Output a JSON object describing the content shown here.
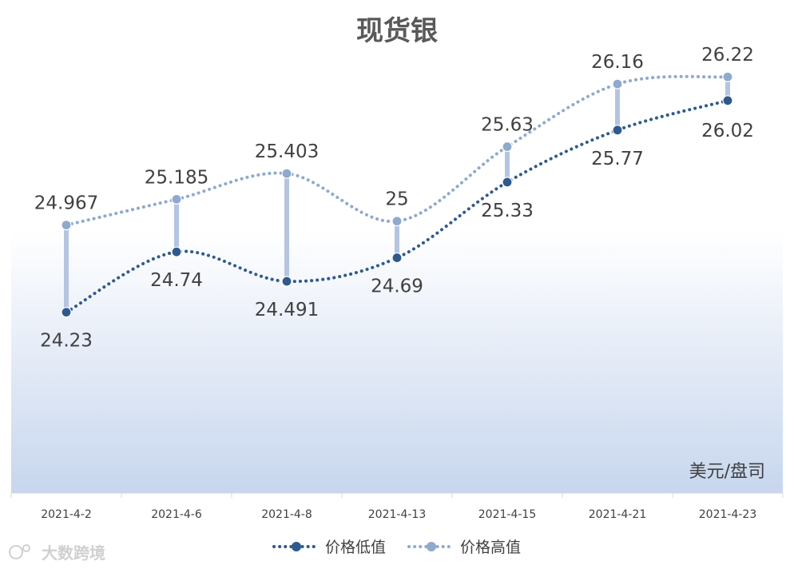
{
  "chart_data": {
    "type": "line",
    "title": "现货银",
    "unit_label": "美元/盘司",
    "categories": [
      "2021-4-2",
      "2021-4-6",
      "2021-4-8",
      "2021-4-13",
      "2021-4-15",
      "2021-4-21",
      "2021-4-23"
    ],
    "series": [
      {
        "name": "价格低值",
        "values": [
          24.23,
          24.74,
          24.491,
          24.69,
          25.33,
          25.77,
          26.02
        ],
        "labels": [
          "24.23",
          "24.74",
          "24.491",
          "24.69",
          "25.33",
          "25.77",
          "26.02"
        ],
        "color": "#2e5a8e"
      },
      {
        "name": "价格高值",
        "values": [
          24.967,
          25.185,
          25.403,
          25,
          25.63,
          26.16,
          26.22
        ],
        "labels": [
          "24.967",
          "25.185",
          "25.403",
          "25",
          "25.63",
          "26.16",
          "26.22"
        ],
        "color": "#8fa9cf"
      }
    ],
    "ylim": [
      22.7,
      26.6
    ],
    "grid": false,
    "legend_position": "bottom"
  },
  "colors": {
    "range_bar": "#b3c5e2",
    "plot_gradient_top": "#ffffff",
    "plot_gradient_bottom": "#c7d6ee",
    "axis": "#d9d9d9"
  },
  "watermark": "大数跨境"
}
